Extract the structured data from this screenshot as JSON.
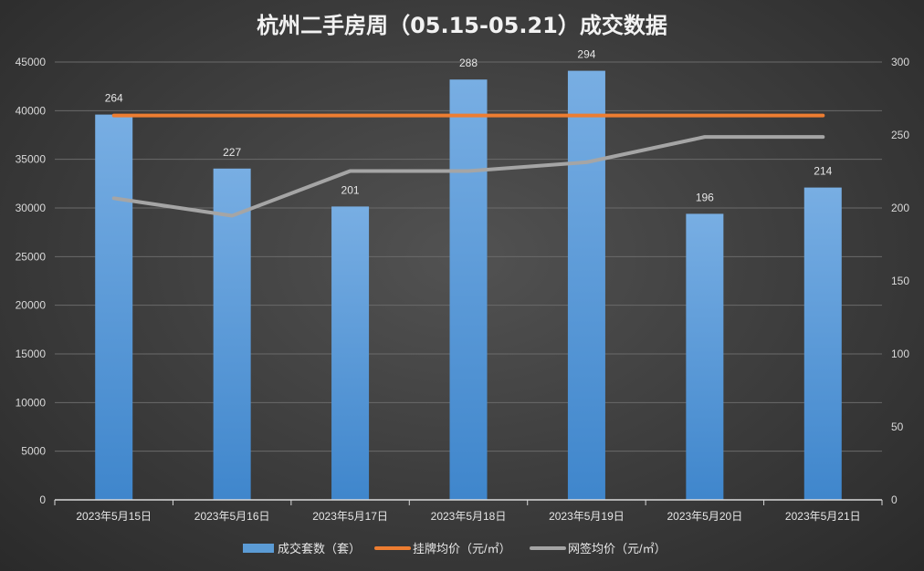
{
  "chart_data": {
    "type": "bar",
    "title": "杭州二手房周（05.15-05.21）成交数据",
    "categories": [
      "2023年5月15日",
      "2023年5月16日",
      "2023年5月17日",
      "2023年5月18日",
      "2023年5月19日",
      "2023年5月20日",
      "2023年5月21日"
    ],
    "series": [
      {
        "name": "成交套数（套）",
        "kind": "bar",
        "axis": "right",
        "values": [
          264,
          227,
          201,
          288,
          294,
          196,
          214
        ],
        "data_labels": [
          "264",
          "227",
          "201",
          "288",
          "294",
          "196",
          "214"
        ],
        "color": "#5b9bd5"
      },
      {
        "name": "挂牌均价（元/㎡）",
        "kind": "line",
        "axis": "left",
        "values": [
          39500,
          39500,
          39500,
          39500,
          39500,
          39500,
          39500
        ],
        "color": "#ed7d31"
      },
      {
        "name": "网签均价（元/㎡）",
        "kind": "line",
        "axis": "left",
        "values": [
          31000,
          29200,
          33800,
          33800,
          34700,
          37300,
          37300
        ],
        "color": "#a5a5a5"
      }
    ],
    "y_left": {
      "ylim": [
        0,
        45000
      ],
      "ticks": [
        "0",
        "5000",
        "10000",
        "15000",
        "20000",
        "25000",
        "30000",
        "35000",
        "40000",
        "45000"
      ]
    },
    "y_right": {
      "ylim": [
        0,
        300
      ],
      "ticks": [
        "0",
        "50",
        "100",
        "150",
        "200",
        "250",
        "300"
      ]
    },
    "grid": true,
    "legend_position": "bottom"
  }
}
